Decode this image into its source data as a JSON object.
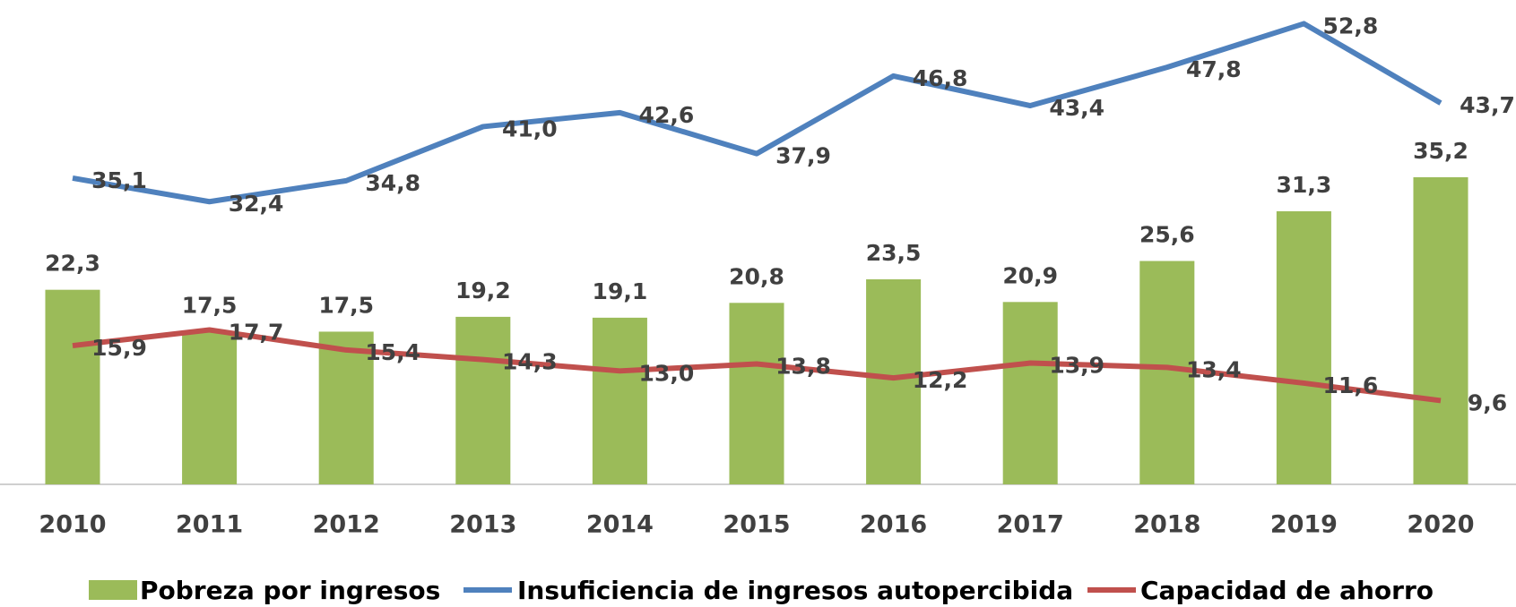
{
  "chart_data": {
    "type": "bar",
    "categories": [
      "2010",
      "2011",
      "2012",
      "2013",
      "2014",
      "2015",
      "2016",
      "2017",
      "2018",
      "2019",
      "2020"
    ],
    "ylim": [
      0,
      55
    ],
    "series": [
      {
        "name": "Pobreza por ingresos",
        "type": "bar",
        "color": "#9bbb59",
        "values": [
          22.3,
          17.5,
          17.5,
          19.2,
          19.1,
          20.8,
          23.5,
          20.9,
          25.6,
          31.3,
          35.2
        ],
        "value_labels": [
          "22,3",
          "17,5",
          "17,5",
          "19,2",
          "19,1",
          "20,8",
          "23,5",
          "20,9",
          "25,6",
          "31,3",
          "35,2"
        ]
      },
      {
        "name": "Insuficiencia de ingresos autopercibida",
        "type": "line",
        "color": "#4f81bd",
        "values": [
          35.1,
          32.4,
          34.8,
          41.0,
          42.6,
          37.9,
          46.8,
          43.4,
          47.8,
          52.8,
          43.7
        ],
        "value_labels": [
          "35,1",
          "32,4",
          "34,8",
          "41,0",
          "42,6",
          "37,9",
          "46,8",
          "43,4",
          "47,8",
          "52,8",
          "43,7"
        ]
      },
      {
        "name": "Capacidad de ahorro",
        "type": "line",
        "color": "#c0504d",
        "values": [
          15.9,
          17.7,
          15.4,
          14.3,
          13.0,
          13.8,
          12.2,
          13.9,
          13.4,
          11.6,
          9.6
        ],
        "value_labels": [
          "15,9",
          "17,7",
          "15,4",
          "14,3",
          "13,0",
          "13,8",
          "12,2",
          "13,9",
          "13,4",
          "11,6",
          "9,6"
        ]
      }
    ],
    "legend": "bottom"
  }
}
